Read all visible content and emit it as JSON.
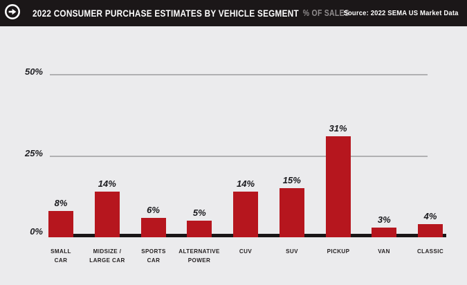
{
  "header": {
    "title": "2022 CONSUMER PURCHASE ESTIMATES BY VEHICLE SEGMENT",
    "subtitle": "% OF SALES",
    "source": "Source: 2022 SEMA US Market Data",
    "icon": "arrow-right-circle-icon",
    "colors": {
      "background": "#1B1718",
      "accent": "#B6161E",
      "title": "#FFFFFF",
      "subtitle": "#8F8B8C"
    }
  },
  "chart_data": {
    "type": "bar",
    "title": "2022 Consumer Purchase Estimates by Vehicle Segment",
    "subtitle": "% of Sales",
    "categories": [
      [
        "SMALL",
        "CAR"
      ],
      [
        "MIDSIZE /",
        "LARGE CAR"
      ],
      [
        "SPORTS",
        "CAR"
      ],
      [
        "ALTERNATIVE",
        "POWER"
      ],
      [
        "CUV"
      ],
      [
        "SUV"
      ],
      [
        "PICKUP"
      ],
      [
        "VAN"
      ],
      [
        "CLASSIC"
      ]
    ],
    "values": [
      8,
      14,
      6,
      5,
      14,
      15,
      31,
      3,
      4
    ],
    "value_labels": [
      "8%",
      "14%",
      "6%",
      "5%",
      "14%",
      "15%",
      "31%",
      "3%",
      "4%"
    ],
    "yticks": [
      {
        "label": "0%",
        "value": 0
      },
      {
        "label": "25%",
        "value": 25
      },
      {
        "label": "50%",
        "value": 50
      }
    ],
    "ylim": [
      0,
      50
    ],
    "ylabel": "",
    "xlabel": "",
    "bar_color": "#B6161E",
    "grid": true,
    "legend": false
  }
}
